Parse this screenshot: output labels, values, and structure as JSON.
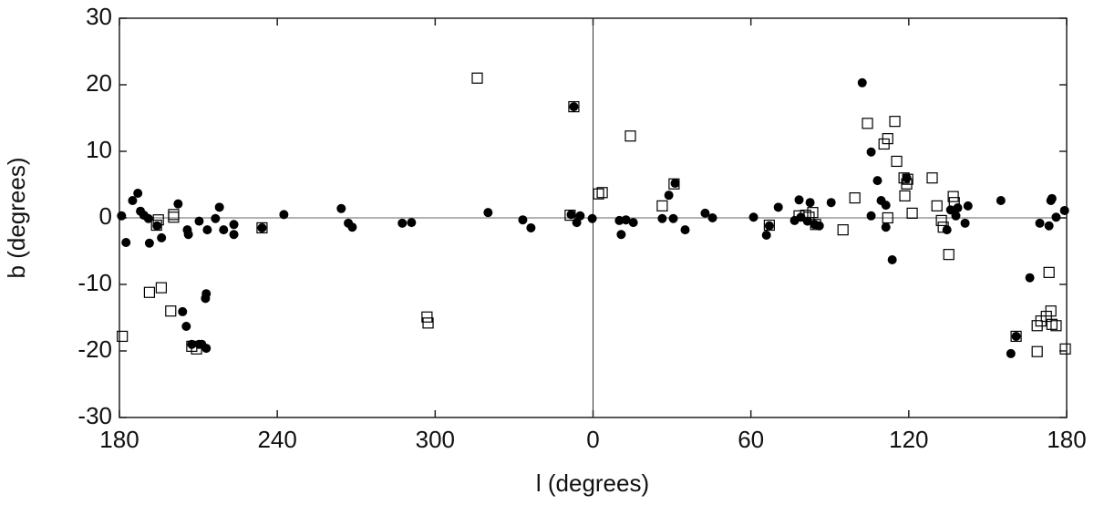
{
  "chart_data": {
    "type": "scatter",
    "x_label": "l (degrees)",
    "y_label": "b (degrees)",
    "xlim": [
      -180,
      180
    ],
    "ylim": [
      -30,
      30
    ],
    "xticks": [
      {
        "value": -180,
        "label": "180"
      },
      {
        "value": -120,
        "label": "240"
      },
      {
        "value": -60,
        "label": "300"
      },
      0,
      60,
      120,
      180
    ],
    "yticks": [
      -30,
      -20,
      -10,
      0,
      10,
      20,
      30
    ],
    "zero_lines": true,
    "series": [
      {
        "marker": "circle",
        "color": "#000000",
        "x": [
          -179.2,
          -177.5,
          -175,
          -173,
          -172,
          -170.7,
          -169,
          -168.6,
          -165.7,
          -164,
          -157.7,
          -154.2,
          -153.8,
          -156,
          -154.6,
          -149.7,
          -146.6,
          -147.3,
          -147,
          -143.5,
          -142,
          -140.4,
          -136.5,
          -136.5,
          -152.5,
          -149.7,
          -148.7,
          -147,
          -125.8,
          -117.5,
          -95.7,
          -93,
          -91.5,
          -72.5,
          -69,
          -39.9,
          -26.7,
          -23.6,
          -8.3,
          -7.3,
          -6.2,
          -4.9,
          -0.3,
          10,
          10.7,
          12.5,
          15.3,
          26.3,
          28.8,
          30.5,
          31.2,
          35,
          42.6,
          45.4,
          61,
          65.9,
          67,
          70.4,
          76.6,
          78.3,
          79,
          81.5,
          82.5,
          84.2,
          86,
          90.5,
          105.7,
          105.7,
          108.1,
          109.5,
          111.3,
          111.3,
          102.3,
          113.7,
          119.2,
          134.5,
          135.9,
          137.9,
          138.6,
          141.4,
          142.5,
          155,
          158.8,
          160.8,
          166,
          169.8,
          173.3,
          174,
          174.4,
          176,
          179.2
        ],
        "values": [
          0.3,
          -3.7,
          2.6,
          3.7,
          1,
          0.4,
          -0.1,
          -3.8,
          -1.2,
          -3,
          2.1,
          -1.8,
          -2.5,
          -14.1,
          -16.3,
          -0.5,
          -1.8,
          -12.1,
          -11.4,
          -0.1,
          1.6,
          -1.8,
          -2.5,
          -1,
          -19,
          -19,
          -19,
          -19.6,
          -1.5,
          0.5,
          1.4,
          -0.8,
          -1.4,
          -0.8,
          -0.7,
          0.8,
          -0.3,
          -1.5,
          0.5,
          16.7,
          -0.7,
          0.3,
          -0.1,
          -0.4,
          -2.5,
          -0.3,
          -0.7,
          -0.1,
          3.4,
          -0.1,
          5.2,
          -1.8,
          0.7,
          0,
          0.1,
          -2.6,
          -1.2,
          1.6,
          -0.4,
          2.7,
          0.1,
          -0.5,
          2.3,
          -1,
          -1.2,
          2.3,
          9.9,
          0.3,
          5.6,
          2.6,
          1.9,
          -1.4,
          20.3,
          -6.3,
          6,
          -1.8,
          1.2,
          0.3,
          1.5,
          -0.8,
          1.8,
          2.6,
          -20.4,
          -17.8,
          -9,
          -0.8,
          -1.2,
          2.6,
          2.9,
          0.1,
          1.1
        ]
      },
      {
        "marker": "square",
        "color": "#000000",
        "x": [
          -178.9,
          -168.6,
          -165.9,
          -165.2,
          -164.1,
          -159.4,
          -159.4,
          -160.5,
          -152.5,
          -150.7,
          -125.8,
          -63.1,
          -62.7,
          -44,
          -8.7,
          -7.3,
          2.1,
          3.5,
          14.2,
          26.3,
          30.8,
          67,
          78.3,
          80.8,
          82.1,
          83.5,
          84.6,
          95,
          99.5,
          104.3,
          110.6,
          112,
          112,
          114.7,
          115.4,
          118.2,
          118.5,
          119.2,
          119.6,
          121.3,
          128.9,
          130.7,
          132.4,
          133.1,
          135.2,
          136.9,
          137.3,
          160.8,
          168.8,
          168.8,
          170.2,
          172.3,
          173.3,
          174,
          174.4,
          176,
          179.5
        ],
        "values": [
          -17.8,
          -11.2,
          -1.1,
          -0.3,
          -10.5,
          0.5,
          0.1,
          -14,
          -19.3,
          -19.7,
          -1.5,
          -14.9,
          -15.8,
          21,
          0.4,
          16.7,
          3.6,
          3.8,
          12.3,
          1.8,
          5.1,
          -1.1,
          0.3,
          0.4,
          0.1,
          0.8,
          -1,
          -1.8,
          3,
          14.2,
          11.1,
          11.9,
          0,
          14.5,
          8.5,
          6,
          3.3,
          5.1,
          5.8,
          0.7,
          6,
          1.8,
          -0.4,
          -1.4,
          -5.5,
          3.2,
          2.3,
          -17.8,
          -16.2,
          -20.1,
          -15.5,
          -14.8,
          -8.2,
          -14,
          -16,
          -16.2,
          -19.7
        ]
      }
    ]
  }
}
